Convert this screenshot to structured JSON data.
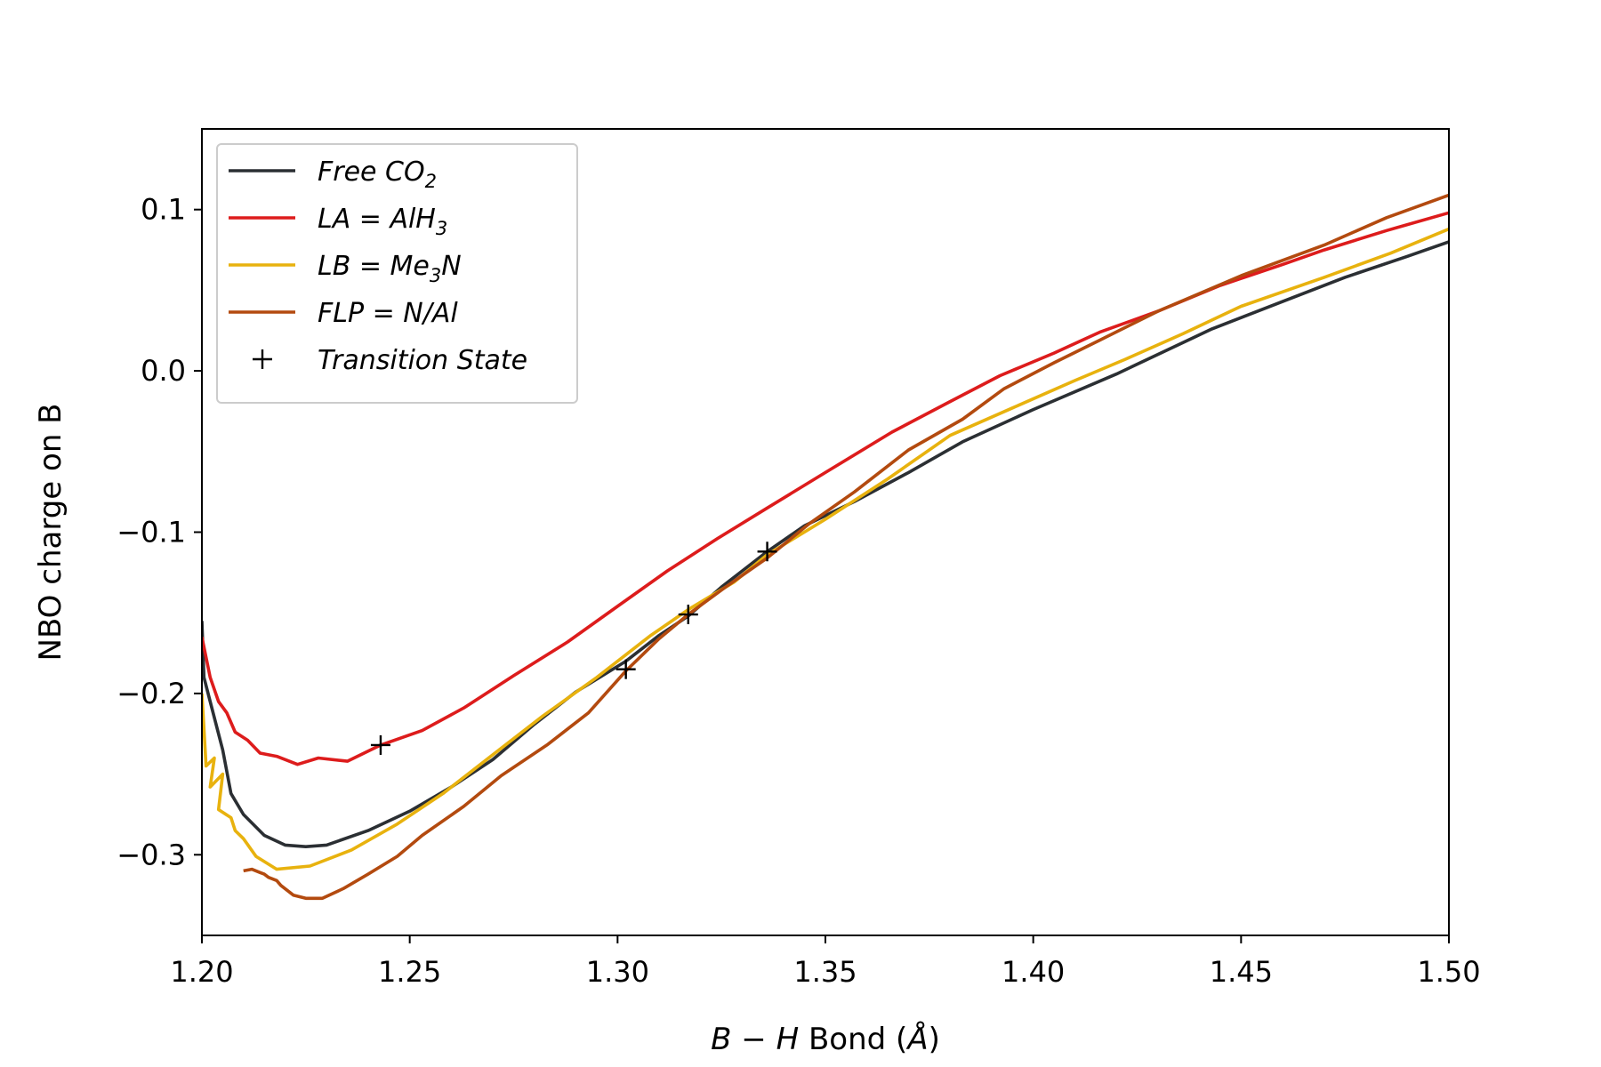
{
  "chart_data": {
    "type": "line",
    "title": "",
    "xlabel_parts": {
      "var1": "B",
      "op": " − ",
      "var2": "H",
      "rest": " Bond (",
      "unit": "Å",
      "close": ")"
    },
    "ylabel": "NBO charge on B",
    "xlim": [
      1.2,
      1.5
    ],
    "ylim": [
      -0.35,
      0.15
    ],
    "x_ticks": [
      1.2,
      1.25,
      1.3,
      1.35,
      1.4,
      1.45,
      1.5
    ],
    "x_tick_labels": [
      "1.20",
      "1.25",
      "1.30",
      "1.35",
      "1.40",
      "1.45",
      "1.50"
    ],
    "y_ticks": [
      0.1,
      0.0,
      -0.1,
      -0.2,
      -0.3
    ],
    "y_tick_labels": [
      "0.1",
      "0.0",
      "−0.1",
      "−0.2",
      "−0.3"
    ],
    "grid": false,
    "legend_position": "top-left",
    "series": [
      {
        "name": "Free CO2",
        "legend": {
          "main": "Free CO",
          "sub": "2",
          "tail": ""
        },
        "color": "#2b2f33",
        "points": [
          [
            1.2,
            -0.155
          ],
          [
            1.2005,
            -0.19
          ],
          [
            1.202,
            -0.205
          ],
          [
            1.205,
            -0.235
          ],
          [
            1.207,
            -0.262
          ],
          [
            1.21,
            -0.275
          ],
          [
            1.215,
            -0.288
          ],
          [
            1.22,
            -0.294
          ],
          [
            1.225,
            -0.295
          ],
          [
            1.23,
            -0.294
          ],
          [
            1.24,
            -0.285
          ],
          [
            1.25,
            -0.273
          ],
          [
            1.26,
            -0.258
          ],
          [
            1.27,
            -0.241
          ],
          [
            1.28,
            -0.219
          ],
          [
            1.29,
            -0.199
          ],
          [
            1.302,
            -0.18
          ],
          [
            1.31,
            -0.164
          ],
          [
            1.317,
            -0.152
          ],
          [
            1.325,
            -0.134
          ],
          [
            1.336,
            -0.112
          ],
          [
            1.345,
            -0.096
          ],
          [
            1.357,
            -0.081
          ],
          [
            1.37,
            -0.063
          ],
          [
            1.383,
            -0.044
          ],
          [
            1.4,
            -0.024
          ],
          [
            1.42,
            -0.002
          ],
          [
            1.443,
            0.026
          ],
          [
            1.46,
            0.043
          ],
          [
            1.475,
            0.058
          ],
          [
            1.49,
            0.071
          ],
          [
            1.5,
            0.08
          ]
        ]
      },
      {
        "name": "LA = AlH3",
        "legend": {
          "main": "LA = AlH",
          "sub": "3",
          "tail": ""
        },
        "color": "#dd1c1c",
        "points": [
          [
            1.2,
            -0.165
          ],
          [
            1.202,
            -0.19
          ],
          [
            1.204,
            -0.205
          ],
          [
            1.206,
            -0.212
          ],
          [
            1.208,
            -0.224
          ],
          [
            1.211,
            -0.229
          ],
          [
            1.214,
            -0.237
          ],
          [
            1.218,
            -0.239
          ],
          [
            1.223,
            -0.244
          ],
          [
            1.228,
            -0.24
          ],
          [
            1.235,
            -0.242
          ],
          [
            1.243,
            -0.232
          ],
          [
            1.253,
            -0.223
          ],
          [
            1.263,
            -0.209
          ],
          [
            1.275,
            -0.189
          ],
          [
            1.288,
            -0.168
          ],
          [
            1.3,
            -0.146
          ],
          [
            1.312,
            -0.124
          ],
          [
            1.324,
            -0.104
          ],
          [
            1.336,
            -0.085
          ],
          [
            1.35,
            -0.063
          ],
          [
            1.366,
            -0.038
          ],
          [
            1.38,
            -0.019
          ],
          [
            1.392,
            -0.003
          ],
          [
            1.405,
            0.011
          ],
          [
            1.416,
            0.024
          ],
          [
            1.43,
            0.037
          ],
          [
            1.445,
            0.053
          ],
          [
            1.46,
            0.066
          ],
          [
            1.47,
            0.075
          ],
          [
            1.485,
            0.087
          ],
          [
            1.5,
            0.098
          ]
        ]
      },
      {
        "name": "LB = Me3N",
        "legend": {
          "main": "LB = Me",
          "sub": "3",
          "tail": "N"
        },
        "color": "#e8b20e",
        "points": [
          [
            1.2,
            -0.2
          ],
          [
            1.201,
            -0.245
          ],
          [
            1.203,
            -0.24
          ],
          [
            1.202,
            -0.258
          ],
          [
            1.205,
            -0.25
          ],
          [
            1.204,
            -0.272
          ],
          [
            1.207,
            -0.277
          ],
          [
            1.208,
            -0.285
          ],
          [
            1.21,
            -0.29
          ],
          [
            1.213,
            -0.301
          ],
          [
            1.218,
            -0.309
          ],
          [
            1.226,
            -0.307
          ],
          [
            1.236,
            -0.297
          ],
          [
            1.247,
            -0.281
          ],
          [
            1.258,
            -0.262
          ],
          [
            1.27,
            -0.238
          ],
          [
            1.282,
            -0.214
          ],
          [
            1.295,
            -0.19
          ],
          [
            1.308,
            -0.164
          ],
          [
            1.317,
            -0.148
          ],
          [
            1.328,
            -0.131
          ],
          [
            1.336,
            -0.114
          ],
          [
            1.35,
            -0.092
          ],
          [
            1.365,
            -0.067
          ],
          [
            1.38,
            -0.04
          ],
          [
            1.395,
            -0.023
          ],
          [
            1.41,
            -0.006
          ],
          [
            1.422,
            0.007
          ],
          [
            1.436,
            0.023
          ],
          [
            1.45,
            0.04
          ],
          [
            1.47,
            0.058
          ],
          [
            1.486,
            0.073
          ],
          [
            1.5,
            0.088
          ]
        ]
      },
      {
        "name": "FLP = N/Al",
        "legend": {
          "main": "FLP = N/Al",
          "sub": "",
          "tail": ""
        },
        "color": "#b34a0f",
        "points": [
          [
            1.21,
            -0.31
          ],
          [
            1.212,
            -0.309
          ],
          [
            1.214,
            -0.311
          ],
          [
            1.215,
            -0.312
          ],
          [
            1.216,
            -0.314
          ],
          [
            1.218,
            -0.316
          ],
          [
            1.219,
            -0.319
          ],
          [
            1.222,
            -0.325
          ],
          [
            1.225,
            -0.327
          ],
          [
            1.229,
            -0.327
          ],
          [
            1.234,
            -0.321
          ],
          [
            1.24,
            -0.312
          ],
          [
            1.247,
            -0.301
          ],
          [
            1.253,
            -0.288
          ],
          [
            1.263,
            -0.27
          ],
          [
            1.272,
            -0.251
          ],
          [
            1.283,
            -0.232
          ],
          [
            1.293,
            -0.212
          ],
          [
            1.302,
            -0.186
          ],
          [
            1.31,
            -0.166
          ],
          [
            1.317,
            -0.151
          ],
          [
            1.326,
            -0.134
          ],
          [
            1.336,
            -0.116
          ],
          [
            1.346,
            -0.095
          ],
          [
            1.357,
            -0.075
          ],
          [
            1.37,
            -0.049
          ],
          [
            1.383,
            -0.03
          ],
          [
            1.393,
            -0.011
          ],
          [
            1.405,
            0.005
          ],
          [
            1.416,
            0.019
          ],
          [
            1.43,
            0.037
          ],
          [
            1.45,
            0.059
          ],
          [
            1.47,
            0.078
          ],
          [
            1.485,
            0.095
          ],
          [
            1.5,
            0.109
          ]
        ]
      }
    ],
    "markers": {
      "name": "Transition State",
      "symbol": "+",
      "color": "#000000",
      "points": [
        [
          1.243,
          -0.232
        ],
        [
          1.302,
          -0.185
        ],
        [
          1.317,
          -0.151
        ],
        [
          1.336,
          -0.112
        ]
      ]
    }
  }
}
